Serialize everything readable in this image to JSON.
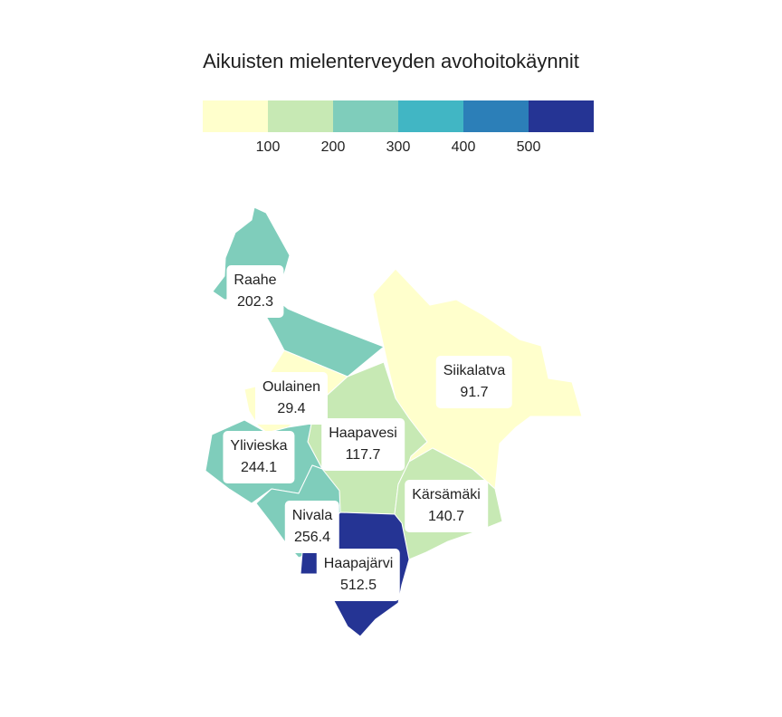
{
  "title": "Aikuisten mielenterveyden avohoitokäynnit",
  "legend": {
    "bins": [
      {
        "color": "#ffffcc"
      },
      {
        "color": "#c7e9b4"
      },
      {
        "color": "#7fcdbb"
      },
      {
        "color": "#41b6c4"
      },
      {
        "color": "#2c7fb8"
      },
      {
        "color": "#253494"
      }
    ],
    "ticks": [
      "100",
      "200",
      "300",
      "400",
      "500"
    ]
  },
  "regions": [
    {
      "name": "Raahe",
      "value": "202.3",
      "color": "#7fcdbb"
    },
    {
      "name": "Siikalatva",
      "value": "91.7",
      "color": "#ffffcc"
    },
    {
      "name": "Oulainen",
      "value": "29.4",
      "color": "#ffffcc"
    },
    {
      "name": "Haapavesi",
      "value": "117.7",
      "color": "#c7e9b4"
    },
    {
      "name": "Ylivieska",
      "value": "244.1",
      "color": "#7fcdbb"
    },
    {
      "name": "Kärsämäki",
      "value": "140.7",
      "color": "#c7e9b4"
    },
    {
      "name": "Nivala",
      "value": "256.4",
      "color": "#7fcdbb"
    },
    {
      "name": "Haapajärvi",
      "value": "512.5",
      "color": "#253494"
    }
  ]
}
